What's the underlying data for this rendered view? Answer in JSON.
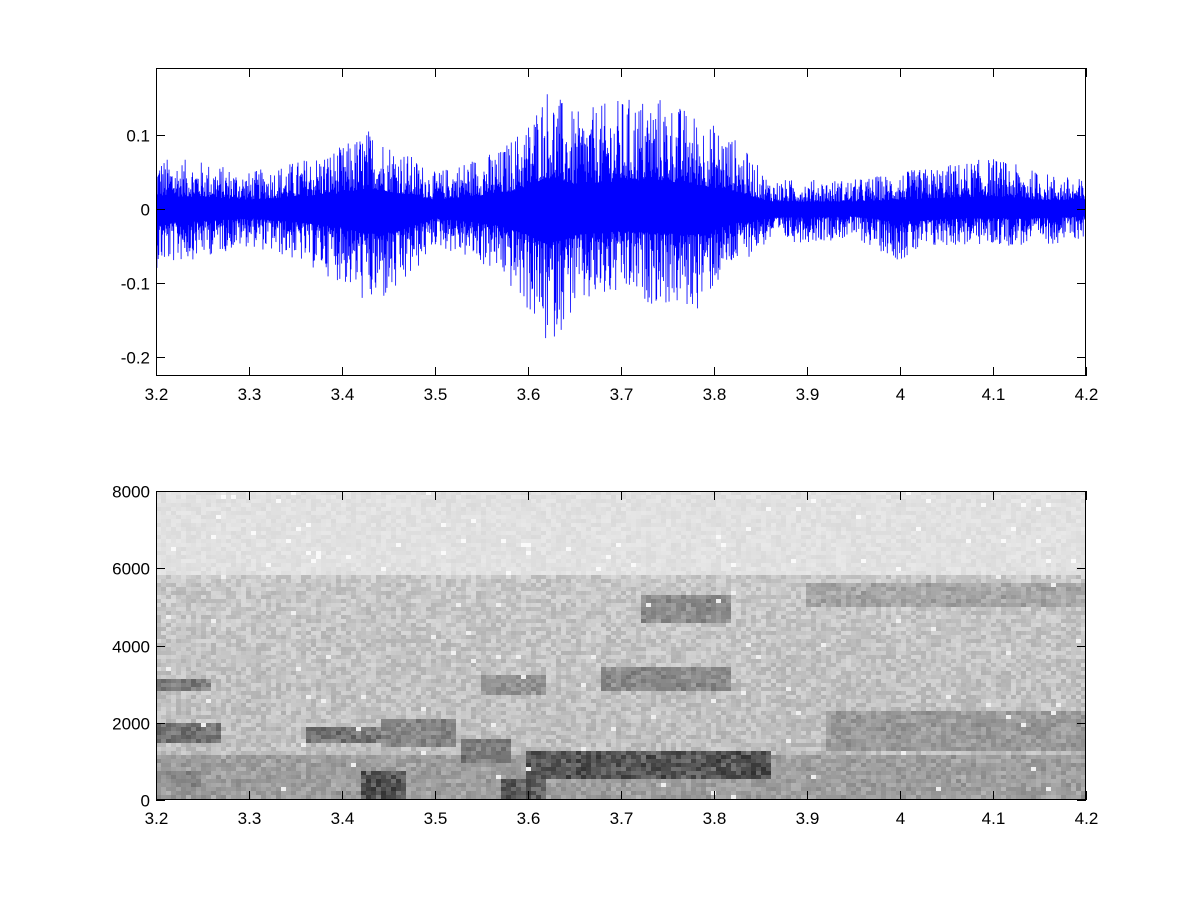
{
  "chart_data": [
    {
      "type": "line",
      "title": "",
      "xlabel": "",
      "ylabel": "",
      "xlim": [
        3.2,
        4.2
      ],
      "ylim": [
        -0.225,
        0.19
      ],
      "x_ticks": [
        3.2,
        3.3,
        3.4,
        3.5,
        3.6,
        3.7,
        3.8,
        3.9,
        4.0,
        4.1,
        4.2
      ],
      "x_tick_labels": [
        "3.2",
        "3.3",
        "3.4",
        "3.5",
        "3.6",
        "3.7",
        "3.8",
        "3.9",
        "4",
        "4.1",
        "4.2"
      ],
      "y_ticks": [
        -0.2,
        -0.1,
        0,
        0.1
      ],
      "y_tick_labels": [
        "-0.2",
        "-0.1",
        "0",
        "0.1"
      ],
      "grid": false,
      "legend": "none",
      "series": [
        {
          "color": "#0000ff",
          "envelope_x": [
            3.2,
            3.25,
            3.3,
            3.35,
            3.4,
            3.43,
            3.46,
            3.5,
            3.54,
            3.57,
            3.6,
            3.62,
            3.65,
            3.7,
            3.74,
            3.78,
            3.82,
            3.86,
            3.9,
            3.95,
            4.0,
            4.05,
            4.1,
            4.15,
            4.2
          ],
          "envelope_upper": [
            0.07,
            0.065,
            0.05,
            0.065,
            0.085,
            0.11,
            0.085,
            0.05,
            0.07,
            0.08,
            0.12,
            0.17,
            0.13,
            0.15,
            0.155,
            0.13,
            0.1,
            0.04,
            0.04,
            0.04,
            0.05,
            0.06,
            0.07,
            0.05,
            0.04
          ],
          "envelope_lower": [
            -0.08,
            -0.065,
            -0.05,
            -0.07,
            -0.1,
            -0.135,
            -0.12,
            -0.05,
            -0.07,
            -0.09,
            -0.14,
            -0.19,
            -0.14,
            -0.12,
            -0.13,
            -0.14,
            -0.08,
            -0.045,
            -0.045,
            -0.04,
            -0.07,
            -0.05,
            -0.05,
            -0.05,
            -0.04
          ]
        }
      ]
    },
    {
      "type": "heatmap",
      "title": "",
      "xlabel": "",
      "ylabel": "",
      "colormap": "gray",
      "xlim": [
        3.2,
        4.2
      ],
      "ylim": [
        0,
        8000
      ],
      "x_ticks": [
        3.2,
        3.3,
        3.4,
        3.5,
        3.6,
        3.7,
        3.8,
        3.9,
        4.0,
        4.1,
        4.2
      ],
      "x_tick_labels": [
        "3.2",
        "3.3",
        "3.4",
        "3.5",
        "3.6",
        "3.7",
        "3.8",
        "3.9",
        "4",
        "4.1",
        "4.2"
      ],
      "y_ticks": [
        0,
        2000,
        4000,
        6000,
        8000
      ],
      "y_tick_labels": [
        "0",
        "2000",
        "4000",
        "6000",
        "8000"
      ],
      "grid": false,
      "legend": "none",
      "noise_ceiling_hz": 5800,
      "dark_regions": [
        {
          "x": [
            3.2,
            3.27
          ],
          "y": [
            1500,
            2000
          ],
          "intensity": 0.6
        },
        {
          "x": [
            3.2,
            3.26
          ],
          "y": [
            2800,
            3100
          ],
          "intensity": 0.55
        },
        {
          "x": [
            3.2,
            3.25
          ],
          "y": [
            300,
            700
          ],
          "intensity": 0.4
        },
        {
          "x": [
            3.36,
            3.44
          ],
          "y": [
            1500,
            1900
          ],
          "intensity": 0.6
        },
        {
          "x": [
            3.42,
            3.47
          ],
          "y": [
            0,
            700
          ],
          "intensity": 0.85
        },
        {
          "x": [
            3.44,
            3.52
          ],
          "y": [
            1400,
            2100
          ],
          "intensity": 0.45
        },
        {
          "x": [
            3.53,
            3.58
          ],
          "y": [
            1000,
            1600
          ],
          "intensity": 0.55
        },
        {
          "x": [
            3.57,
            3.62
          ],
          "y": [
            0,
            500
          ],
          "intensity": 0.8
        },
        {
          "x": [
            3.6,
            3.86
          ],
          "y": [
            500,
            1300
          ],
          "intensity": 0.85
        },
        {
          "x": [
            3.55,
            3.62
          ],
          "y": [
            2700,
            3200
          ],
          "intensity": 0.35
        },
        {
          "x": [
            3.68,
            3.82
          ],
          "y": [
            2800,
            3400
          ],
          "intensity": 0.45
        },
        {
          "x": [
            3.72,
            3.82
          ],
          "y": [
            4600,
            5300
          ],
          "intensity": 0.45
        },
        {
          "x": [
            3.92,
            4.2
          ],
          "y": [
            1300,
            2300
          ],
          "intensity": 0.3
        },
        {
          "x": [
            3.9,
            4.2
          ],
          "y": [
            5000,
            5600
          ],
          "intensity": 0.25
        },
        {
          "x": [
            3.2,
            4.2
          ],
          "y": [
            0,
            1200
          ],
          "intensity": 0.25
        }
      ]
    }
  ]
}
